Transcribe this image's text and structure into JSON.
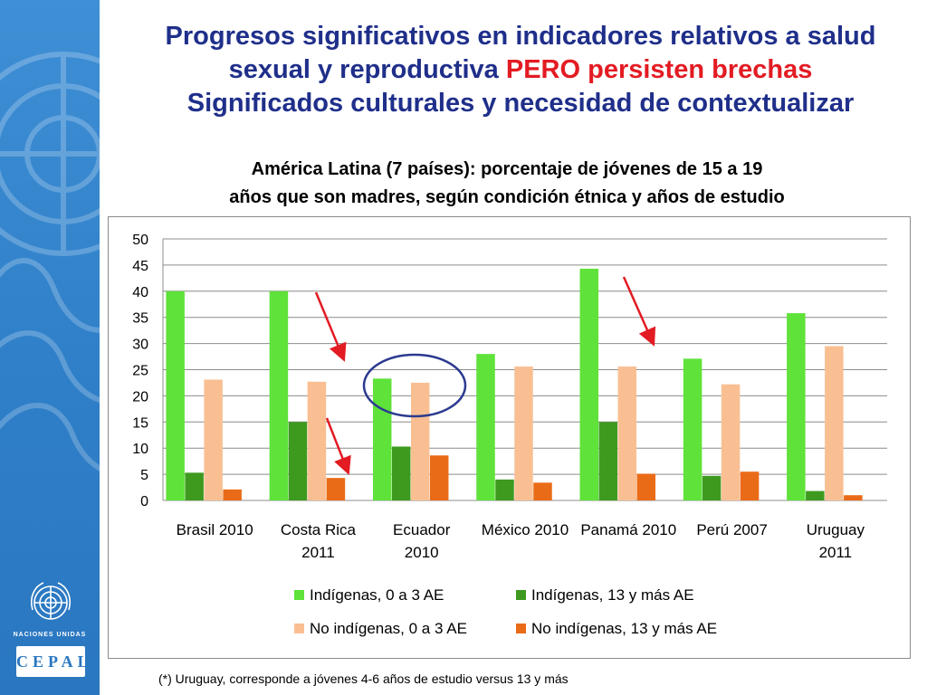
{
  "slide": {
    "title_line1": "Progresos significativos en indicadores relativos a salud",
    "title_line2_a": "sexual y reproductiva ",
    "title_line2_b": "PERO persisten brechas",
    "title_line3": "Significados culturales y necesidad de contextualizar",
    "subtitle_line1": "América Latina (7 países): porcentaje de jóvenes de 15 a 19",
    "subtitle_line2": "años que son madres, según condición étnica y años de estudio",
    "footnote": "(*) Uruguay, corresponde a jóvenes 4-6 años de estudio versus 13 y más",
    "logos": {
      "un_text": "NACIONES UNIDAS",
      "cepal_text": "CEPAL"
    }
  },
  "chart_data": {
    "type": "bar",
    "categories": [
      [
        "Brasil 2010"
      ],
      [
        "Costa Rica",
        "2011"
      ],
      [
        "Ecuador",
        "2010"
      ],
      [
        "México 2010"
      ],
      [
        "Panamá 2010"
      ],
      [
        "Perú 2007"
      ],
      [
        "Uruguay",
        "2011"
      ]
    ],
    "series": [
      {
        "name": "Indígenas, 0 a 3 AE",
        "color": "#5fe23a",
        "values": [
          40,
          40,
          23.3,
          28,
          44.3,
          27.1,
          35.8
        ]
      },
      {
        "name": "Indígenas, 13 y más AE",
        "color": "#3e9a1f",
        "values": [
          5.3,
          15,
          10.3,
          4,
          15,
          4.7,
          1.8
        ]
      },
      {
        "name": "No indígenas,  0 a 3 AE",
        "color": "#f9bf93",
        "values": [
          23.1,
          22.7,
          22.5,
          25.6,
          25.6,
          22.2,
          29.5
        ]
      },
      {
        "name": "No indígenas,  13 y más AE",
        "color": "#ea6b17",
        "values": [
          2.1,
          4.3,
          8.6,
          3.4,
          5.1,
          5.5,
          1
        ]
      }
    ],
    "ylim": [
      0,
      50
    ],
    "yticks": [
      0,
      5,
      10,
      15,
      20,
      25,
      30,
      35,
      40,
      45,
      50
    ],
    "grid": true,
    "legend_position": "bottom",
    "annotations": [
      {
        "type": "arrow",
        "color": "#e31b23",
        "description": "Costa Rica decrease (indígenas 0-3 AE to no indígenas)"
      },
      {
        "type": "arrow",
        "color": "#e31b23",
        "description": "Costa Rica decrease (13+ AE)"
      },
      {
        "type": "arrow",
        "color": "#e31b23",
        "description": "Panamá decrease"
      },
      {
        "type": "ellipse",
        "color": "#2b3a8f",
        "description": "Ecuador 0-3 AE bars highlighted"
      }
    ]
  }
}
